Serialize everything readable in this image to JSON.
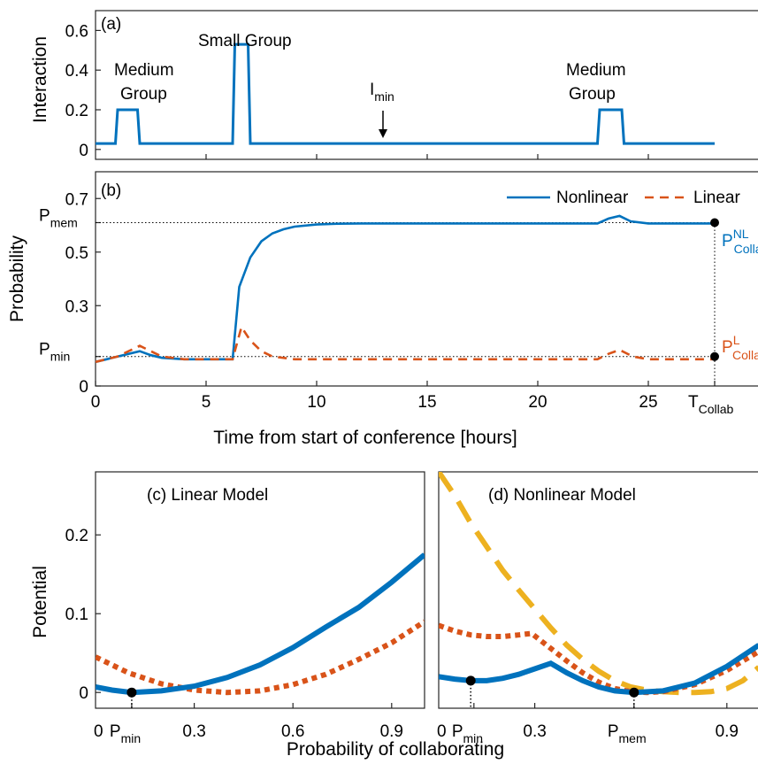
{
  "colors": {
    "nonlinear": "#0072BD",
    "linear": "#D95319",
    "extra": "#EDB120",
    "axis": "#262626"
  },
  "chart_data": [
    {
      "panel": "(a)",
      "type": "line",
      "ylabel": "Interaction",
      "xlim": [
        0,
        30
      ],
      "ylim": [
        -0.05,
        0.7
      ],
      "yticks": [
        0,
        0.2,
        0.4,
        0.6
      ],
      "annotations": [
        {
          "text": "Small Group"
        },
        {
          "line1": "Medium",
          "line2": "Group"
        },
        {
          "line1": "Medium",
          "line2": "Group"
        },
        {
          "main": "I",
          "sub": "min"
        }
      ],
      "series": [
        {
          "x": [
            0,
            0.9,
            1.0,
            1.9,
            2.0,
            6.2,
            6.3,
            6.9,
            7.0,
            22.7,
            22.8,
            23.8,
            23.9,
            28
          ],
          "y": [
            0.03,
            0.03,
            0.2,
            0.2,
            0.03,
            0.03,
            0.53,
            0.53,
            0.03,
            0.03,
            0.2,
            0.2,
            0.03,
            0.03
          ]
        }
      ]
    },
    {
      "panel": "(b)",
      "type": "line",
      "ylabel": "Probability",
      "xlabel": "Time from start of conference [hours]",
      "xlim": [
        0,
        30
      ],
      "ylim": [
        0,
        0.8
      ],
      "xticks": [
        0,
        5,
        10,
        15,
        20,
        25
      ],
      "yticks": [
        0,
        0.3,
        0.5,
        0.7
      ],
      "ytick_labels": [
        {
          "value": 0.11,
          "main": "P",
          "sub": "min"
        },
        {
          "value": 0.61,
          "main": "P",
          "sub": "mem"
        }
      ],
      "xtick_label_end": {
        "value": 28,
        "main": "T",
        "sub": "Collab"
      },
      "end_labels": [
        {
          "main": "P",
          "sub": "Collab",
          "sup": "NL",
          "series": "Nonlinear"
        },
        {
          "main": "P",
          "sub": "Collab",
          "sup": "L",
          "series": "Linear"
        }
      ],
      "legend_location": "top-right",
      "series": [
        {
          "name": "Nonlinear",
          "style": "solid",
          "x": [
            0,
            0.5,
            1.0,
            1.5,
            2.0,
            2.5,
            3.0,
            4.0,
            5.0,
            6.0,
            6.2,
            6.5,
            7.0,
            7.5,
            8.0,
            8.5,
            9.0,
            10.0,
            11.0,
            12.0,
            14.0,
            18.0,
            22.7,
            23.2,
            23.7,
            24.2,
            25.0,
            28.0
          ],
          "y": [
            0.09,
            0.1,
            0.11,
            0.12,
            0.13,
            0.115,
            0.105,
            0.1,
            0.1,
            0.1,
            0.1,
            0.37,
            0.48,
            0.54,
            0.57,
            0.585,
            0.595,
            0.603,
            0.606,
            0.607,
            0.607,
            0.607,
            0.607,
            0.625,
            0.635,
            0.615,
            0.607,
            0.607
          ]
        },
        {
          "name": "Linear",
          "style": "dashed",
          "x": [
            0,
            1.0,
            2.0,
            2.5,
            3.0,
            4.0,
            6.2,
            6.6,
            7.0,
            7.5,
            8.0,
            9.0,
            10.0,
            22.7,
            23.2,
            23.7,
            24.3,
            25.0,
            28.0
          ],
          "y": [
            0.09,
            0.11,
            0.15,
            0.13,
            0.11,
            0.1,
            0.1,
            0.22,
            0.17,
            0.13,
            0.11,
            0.1,
            0.1,
            0.1,
            0.12,
            0.135,
            0.11,
            0.1,
            0.1
          ]
        }
      ]
    },
    {
      "panel": "(c)",
      "title": "(c) Linear Model",
      "type": "line",
      "ylabel": "Potential",
      "xlim": [
        0,
        1
      ],
      "ylim": [
        -0.02,
        0.28
      ],
      "xticks": [
        0.3,
        0.6,
        0.9
      ],
      "yticks": [
        0,
        0.1,
        0.2
      ],
      "xtick_label_min": {
        "value": 0.11,
        "main": "P",
        "sub": "min"
      },
      "marker": {
        "x": 0.11,
        "y": 0
      },
      "series": [
        {
          "style": "solid",
          "x": [
            0,
            0.05,
            0.11,
            0.2,
            0.3,
            0.4,
            0.5,
            0.6,
            0.7,
            0.8,
            0.9,
            1.0
          ],
          "y": [
            0.007,
            0.003,
            0.0,
            0.002,
            0.008,
            0.019,
            0.035,
            0.057,
            0.083,
            0.108,
            0.14,
            0.175
          ]
        },
        {
          "style": "dotted",
          "x": [
            0,
            0.1,
            0.2,
            0.3,
            0.4,
            0.5,
            0.6,
            0.7,
            0.8,
            0.9,
            1.0
          ],
          "y": [
            0.045,
            0.025,
            0.011,
            0.003,
            0.0,
            0.002,
            0.01,
            0.023,
            0.042,
            0.063,
            0.09
          ]
        }
      ]
    },
    {
      "panel": "(d)",
      "title": "(d) Nonlinear Model",
      "type": "line",
      "xlabel": "Probability of collaborating",
      "xlim": [
        0,
        1
      ],
      "ylim": [
        -0.02,
        0.28
      ],
      "xticks": [
        0.3,
        0.9
      ],
      "xtick_label_min": {
        "value": 0.11,
        "main": "P",
        "sub": "min"
      },
      "xtick_label_mem": {
        "value": 0.61,
        "main": "P",
        "sub": "mem"
      },
      "markers": [
        {
          "x": 0.1,
          "y": 0.015
        },
        {
          "x": 0.61,
          "y": 0
        }
      ],
      "series": [
        {
          "style": "solid",
          "x": [
            0,
            0.05,
            0.1,
            0.15,
            0.2,
            0.25,
            0.3,
            0.35,
            0.4,
            0.45,
            0.5,
            0.55,
            0.61,
            0.7,
            0.8,
            0.9,
            1.0
          ],
          "y": [
            0.02,
            0.017,
            0.015,
            0.015,
            0.018,
            0.023,
            0.03,
            0.037,
            0.025,
            0.015,
            0.007,
            0.002,
            0.0,
            0.002,
            0.012,
            0.033,
            0.06
          ]
        },
        {
          "style": "dotted",
          "x": [
            0,
            0.05,
            0.1,
            0.15,
            0.2,
            0.25,
            0.29,
            0.35,
            0.4,
            0.45,
            0.5,
            0.55,
            0.6,
            0.65,
            0.7,
            0.8,
            0.9,
            1.0
          ],
          "y": [
            0.085,
            0.078,
            0.073,
            0.071,
            0.071,
            0.073,
            0.075,
            0.056,
            0.04,
            0.025,
            0.013,
            0.005,
            0.001,
            0.0,
            0.001,
            0.01,
            0.028,
            0.052
          ]
        },
        {
          "style": "dashed",
          "x": [
            0,
            0.05,
            0.1,
            0.15,
            0.2,
            0.25,
            0.3,
            0.35,
            0.4,
            0.45,
            0.5,
            0.55,
            0.6,
            0.65,
            0.7,
            0.75,
            0.8,
            0.85,
            0.9,
            0.95,
            1.0
          ],
          "y": [
            0.28,
            0.25,
            0.215,
            0.185,
            0.155,
            0.13,
            0.106,
            0.082,
            0.06,
            0.042,
            0.027,
            0.015,
            0.007,
            0.003,
            0.001,
            0.0,
            0.0,
            0.001,
            0.005,
            0.015,
            0.032
          ]
        }
      ]
    }
  ],
  "text_blocks": {
    "legend_nonlinear": "Nonlinear",
    "legend_linear": "Linear"
  }
}
